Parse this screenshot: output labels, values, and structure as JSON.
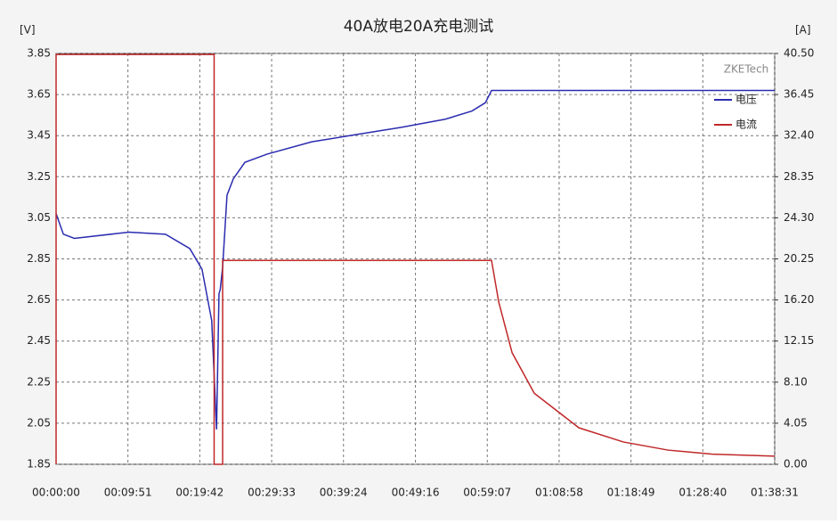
{
  "chart_data": {
    "type": "line",
    "title": "40A放电20A充电测试",
    "y_unit": "[V]",
    "y2_unit": "[A]",
    "watermark": "ZKETech",
    "grid": true,
    "legend": "upper right",
    "xlim": [
      0,
      5911
    ],
    "xticks": [
      {
        "value": 0,
        "label": "00:00:00"
      },
      {
        "value": 591,
        "label": "00:09:51"
      },
      {
        "value": 1182,
        "label": "00:19:42"
      },
      {
        "value": 1773,
        "label": "00:29:33"
      },
      {
        "value": 2364,
        "label": "00:39:24"
      },
      {
        "value": 2956,
        "label": "00:49:16"
      },
      {
        "value": 3547,
        "label": "00:59:07"
      },
      {
        "value": 4138,
        "label": "01:08:58"
      },
      {
        "value": 4729,
        "label": "01:18:49"
      },
      {
        "value": 5320,
        "label": "01:28:40"
      },
      {
        "value": 5911,
        "label": "01:38:31"
      }
    ],
    "ylim": [
      1.85,
      3.85
    ],
    "yticks": [
      1.85,
      2.05,
      2.25,
      2.45,
      2.65,
      2.85,
      3.05,
      3.25,
      3.45,
      3.65,
      3.85
    ],
    "y2lim": [
      0,
      40.5
    ],
    "y2ticks": [
      {
        "value": 0,
        "label": "0.00"
      },
      4.05,
      {
        "value": 8.1,
        "label": "8.10"
      },
      12.15,
      {
        "value": 16.2,
        "label": "16.20"
      },
      20.25,
      {
        "value": 24.3,
        "label": "24.30"
      },
      28.35,
      {
        "value": 32.4,
        "label": "32.40"
      },
      36.45,
      {
        "value": 40.5,
        "label": "40.50"
      }
    ],
    "series": [
      {
        "name": "电压",
        "color": "#2b2bb0",
        "x": [
          0,
          60,
          150,
          600,
          900,
          1100,
          1200,
          1280,
          1320,
          1340,
          1350,
          1370,
          1406,
          1458,
          1553,
          1736,
          2103,
          2469,
          2835,
          3202,
          3421,
          3531,
          3582,
          5911
        ],
        "values": [
          3.07,
          2.97,
          2.95,
          2.98,
          2.97,
          2.9,
          2.8,
          2.55,
          2.02,
          2.68,
          2.7,
          2.81,
          3.16,
          3.24,
          3.32,
          3.36,
          3.42,
          3.455,
          3.49,
          3.53,
          3.57,
          3.61,
          3.67,
          3.67
        ]
      },
      {
        "name": "电流",
        "color": "#c0282a",
        "axis": "y2",
        "x": [
          0,
          0,
          1300,
          1300,
          1370,
          1370,
          3582,
          3641,
          3751,
          3934,
          4300,
          4666,
          5033,
          5399,
          5911
        ],
        "values": [
          0,
          40.4,
          40.4,
          0,
          0,
          20.1,
          20.1,
          16,
          11,
          7,
          3.6,
          2.2,
          1.4,
          1,
          0.8
        ]
      }
    ]
  }
}
